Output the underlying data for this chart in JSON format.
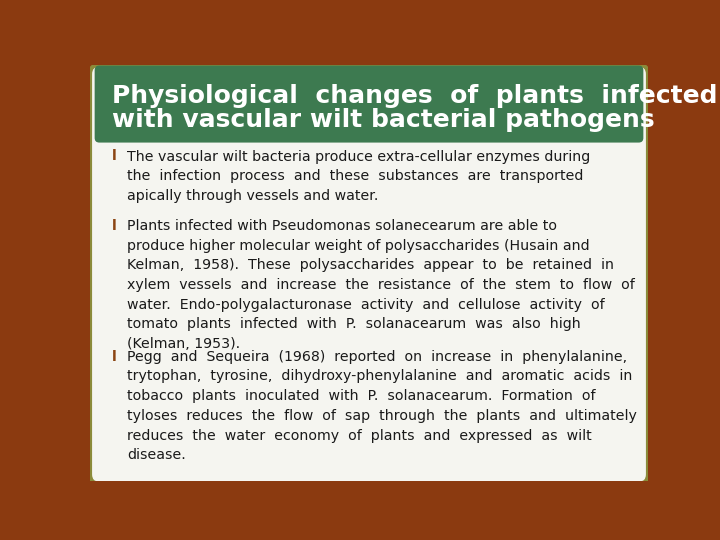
{
  "title_line1": "Physiological  changes  of  plants  infected",
  "title_line2": "with vascular wilt bacterial pathogens",
  "title_bg_color": "#3d7a50",
  "title_border_color": "#8B4513",
  "title_text_color": "#ffffff",
  "body_bg_color": "#f5f5f0",
  "body_border_color": "#8b8b3a",
  "bullet_color": "#8B4513",
  "text_color": "#1a1a1a",
  "outer_bg_color": "#8B3A10",
  "bullet1": "The vascular wilt bacteria produce extra-cellular enzymes during the infection process and these substances are transported apically through vessels and water.",
  "bullet2_pre": "Plants infected with ",
  "bullet2_italic1": "Pseudomonas solanecearum",
  "bullet2_mid": " are able to produce higher molecular weight of polysaccharides (Husain and Kelman, 1958). These polysaccharides appear to be retained in xylem vessels and increase the resistance of the stem to flow of water. Endo-polygalacturonase activity and cellulose activity of tomato plants infected with ",
  "bullet2_italic2": "P. solanacearum",
  "bullet2_post": " was also high (Kelman, 1953).",
  "bullet3_pre": "Pegg and Sequeira (1968) reported on increase in phenylalanine, trytophan, tyrosine, dihydroxy-phenylalanine and aromatic acids in tobacco plants inoculated with ",
  "bullet3_italic": "P. solanacearum.",
  "bullet3_post": " Formation of tyloses reduces the flow of sap through the plants and ultimately reduces the water economy of plants and expressed as wilt disease."
}
